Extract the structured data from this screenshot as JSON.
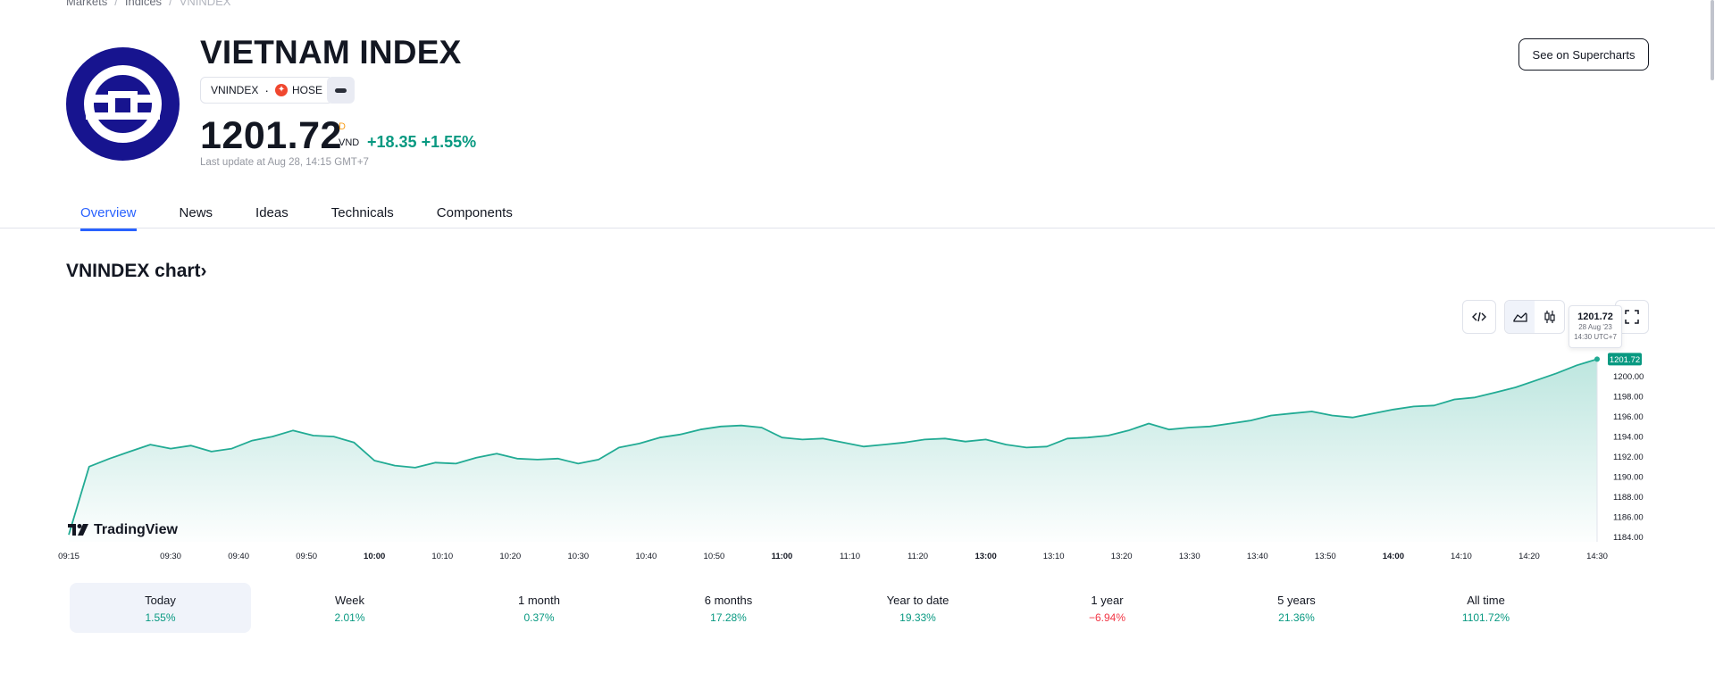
{
  "breadcrumb": {
    "items": [
      "Markets",
      "Indices",
      "VNINDEX"
    ]
  },
  "header": {
    "title": "VIETNAM INDEX",
    "symbol": "VNINDEX",
    "exchange": "HOSE",
    "price": "1201.72",
    "price_flag": "D",
    "currency": "VND",
    "change": "+18.35",
    "change_percent": "+1.55%",
    "last_update": "Last update at Aug 28, 14:15 GMT+7",
    "supercharts_label": "See on Supercharts"
  },
  "tabs": [
    {
      "label": "Overview",
      "active": true
    },
    {
      "label": "News",
      "active": false
    },
    {
      "label": "Ideas",
      "active": false
    },
    {
      "label": "Technicals",
      "active": false
    },
    {
      "label": "Components",
      "active": false
    }
  ],
  "chart_section": {
    "title": "VNINDEX chart",
    "title_chevron": "›",
    "tooltip": {
      "value": "1201.72",
      "date": "28 Aug '23",
      "time": "14:30 UTC+7"
    },
    "watermark": "TradingView"
  },
  "colors": {
    "accent": "#2962ff",
    "positive": "#089981",
    "negative": "#f23645",
    "logo": "#17148f",
    "line": "#22ab94"
  },
  "chart_data": {
    "type": "area",
    "title": "",
    "xlabel": "",
    "ylabel": "",
    "x_ticks": [
      "09:15",
      "09:30",
      "09:40",
      "09:50",
      "10:00",
      "10:10",
      "10:20",
      "10:30",
      "10:40",
      "10:50",
      "11:00",
      "11:10",
      "11:20",
      "13:00",
      "13:10",
      "13:20",
      "13:30",
      "13:40",
      "13:50",
      "14:00",
      "14:10",
      "14:20",
      "14:30"
    ],
    "x_ticks_bold": [
      "10:00",
      "11:00",
      "13:00",
      "14:00"
    ],
    "y_ticks": [
      1184,
      1186,
      1188,
      1190,
      1192,
      1194,
      1196,
      1198,
      1200
    ],
    "ylim": [
      1183.5,
      1203
    ],
    "last_value_label": "1201.72",
    "series": [
      {
        "x": [
          "09:15",
          "09:18",
          "09:21",
          "09:24",
          "09:27",
          "09:30",
          "09:33",
          "09:36",
          "09:39",
          "09:42",
          "09:45",
          "09:48",
          "09:51",
          "09:54",
          "09:57",
          "10:00",
          "10:03",
          "10:06",
          "10:09",
          "10:12",
          "10:15",
          "10:18",
          "10:21",
          "10:24",
          "10:27",
          "10:30",
          "10:33",
          "10:36",
          "10:39",
          "10:42",
          "10:45",
          "10:48",
          "10:51",
          "10:54",
          "10:57",
          "11:00",
          "11:03",
          "11:06",
          "11:09",
          "11:12",
          "11:15",
          "11:18",
          "11:21",
          "11:24",
          "11:27",
          "13:00",
          "13:03",
          "13:06",
          "13:09",
          "13:12",
          "13:15",
          "13:18",
          "13:21",
          "13:24",
          "13:27",
          "13:30",
          "13:33",
          "13:36",
          "13:39",
          "13:42",
          "13:45",
          "13:48",
          "13:51",
          "13:54",
          "13:57",
          "14:00",
          "14:03",
          "14:06",
          "14:09",
          "14:12",
          "14:15",
          "14:18",
          "14:21",
          "14:24",
          "14:27",
          "14:30"
        ],
        "values": [
          1184.2,
          1191.0,
          1191.8,
          1192.5,
          1193.2,
          1192.8,
          1193.1,
          1192.5,
          1192.8,
          1193.6,
          1194.0,
          1194.6,
          1194.1,
          1194.0,
          1193.4,
          1191.6,
          1191.1,
          1190.9,
          1191.4,
          1191.3,
          1191.9,
          1192.3,
          1191.8,
          1191.7,
          1191.8,
          1191.3,
          1191.7,
          1192.9,
          1193.3,
          1193.9,
          1194.2,
          1194.7,
          1195.0,
          1195.1,
          1194.9,
          1193.9,
          1193.7,
          1193.8,
          1193.4,
          1193.0,
          1193.2,
          1193.4,
          1193.7,
          1193.8,
          1193.5,
          1193.7,
          1193.2,
          1192.9,
          1193.0,
          1193.8,
          1193.9,
          1194.1,
          1194.6,
          1195.3,
          1194.7,
          1194.9,
          1195.0,
          1195.3,
          1195.6,
          1196.1,
          1196.3,
          1196.5,
          1196.1,
          1195.9,
          1196.3,
          1196.7,
          1197.0,
          1197.1,
          1197.7,
          1197.9,
          1198.4,
          1198.9,
          1199.6,
          1200.3,
          1201.1,
          1201.72
        ]
      }
    ]
  },
  "ranges": [
    {
      "label": "Today",
      "value": "1.55%",
      "negative": false,
      "selected": true
    },
    {
      "label": "Week",
      "value": "2.01%",
      "negative": false,
      "selected": false
    },
    {
      "label": "1 month",
      "value": "0.37%",
      "negative": false,
      "selected": false
    },
    {
      "label": "6 months",
      "value": "17.28%",
      "negative": false,
      "selected": false
    },
    {
      "label": "Year to date",
      "value": "19.33%",
      "negative": false,
      "selected": false
    },
    {
      "label": "1 year",
      "value": "−6.94%",
      "negative": true,
      "selected": false
    },
    {
      "label": "5 years",
      "value": "21.36%",
      "negative": false,
      "selected": false
    },
    {
      "label": "All time",
      "value": "1101.72%",
      "negative": false,
      "selected": false
    }
  ]
}
